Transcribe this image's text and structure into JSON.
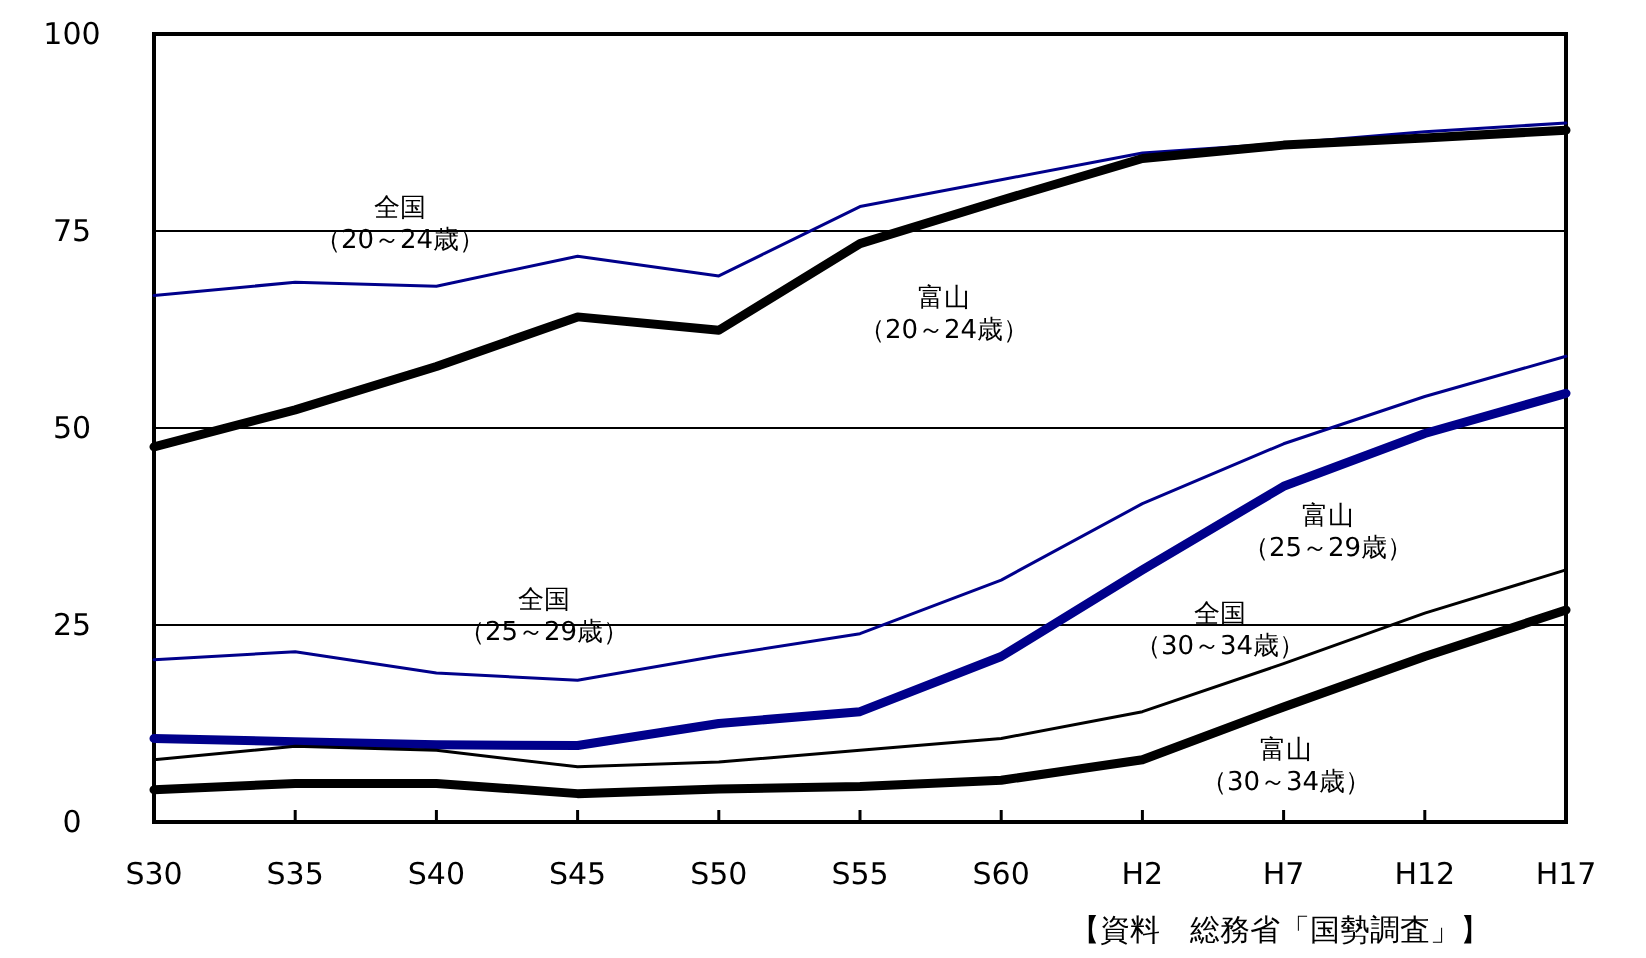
{
  "chart_data": {
    "type": "line",
    "categories": [
      "S30",
      "S35",
      "S40",
      "S45",
      "S50",
      "S55",
      "S60",
      "H2",
      "H7",
      "H12",
      "H17"
    ],
    "series": [
      {
        "name": "全国（20～24歳）",
        "color": "#00008b",
        "values": [
          66.8,
          68.5,
          68.0,
          71.8,
          69.3,
          78.1,
          81.5,
          84.9,
          86.1,
          87.6,
          88.7
        ]
      },
      {
        "name": "富山（20～24歳）",
        "color": "#000000",
        "values": [
          47.6,
          52.3,
          57.8,
          64.1,
          62.4,
          73.4,
          78.9,
          84.2,
          85.9,
          86.8,
          87.8
        ]
      },
      {
        "name": "全国（25～29歳）",
        "color": "#00008b",
        "values": [
          20.6,
          21.6,
          18.9,
          18.0,
          21.1,
          23.9,
          30.7,
          40.4,
          48.0,
          54.0,
          59.1
        ]
      },
      {
        "name": "富山（25～29歳）",
        "color": "#00008b",
        "values": [
          10.6,
          10.2,
          9.8,
          9.7,
          12.5,
          14.0,
          21.0,
          32.0,
          42.6,
          49.3,
          54.4
        ]
      },
      {
        "name": "全国（30～34歳）",
        "color": "#000000",
        "values": [
          7.9,
          9.6,
          9.1,
          7.0,
          7.6,
          9.1,
          10.6,
          14.0,
          20.1,
          26.5,
          32.0
        ]
      },
      {
        "name": "富山（30～34歳）",
        "color": "#000000",
        "values": [
          4.1,
          4.9,
          4.9,
          3.6,
          4.2,
          4.5,
          5.3,
          7.9,
          14.6,
          21.0,
          26.9
        ]
      }
    ],
    "ylim": [
      0,
      100
    ],
    "yticks": [
      0,
      25,
      50,
      75,
      100
    ],
    "grid": "y",
    "marker": "none",
    "line_style": "solid",
    "annotations": [
      "【資料　総務省「国勢調査」】"
    ]
  }
}
